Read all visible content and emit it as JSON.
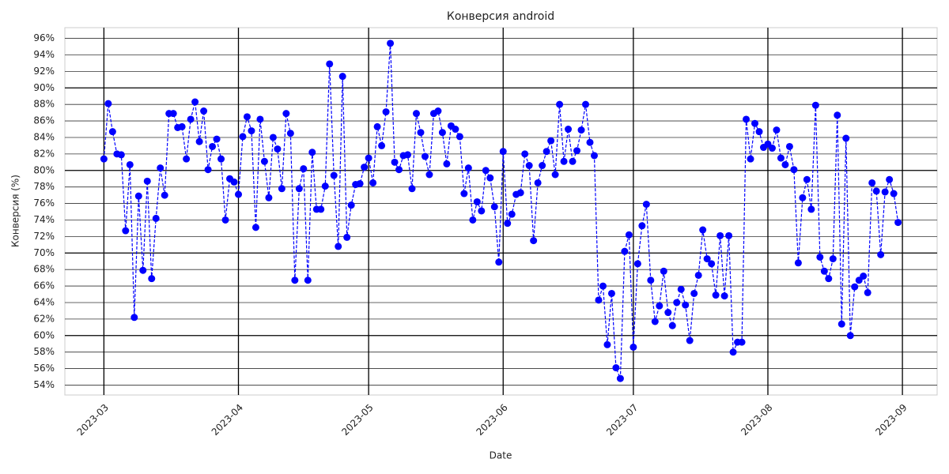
{
  "chart_data": {
    "type": "line",
    "title": "Конверсия android",
    "xlabel": "Date",
    "ylabel": "Конверсия (%)",
    "x": [
      "2023-03-01",
      "2023-03-02",
      "2023-03-03",
      "2023-03-04",
      "2023-03-05",
      "2023-03-06",
      "2023-03-07",
      "2023-03-08",
      "2023-03-09",
      "2023-03-10",
      "2023-03-11",
      "2023-03-12",
      "2023-03-13",
      "2023-03-14",
      "2023-03-15",
      "2023-03-16",
      "2023-03-17",
      "2023-03-18",
      "2023-03-19",
      "2023-03-20",
      "2023-03-21",
      "2023-03-22",
      "2023-03-23",
      "2023-03-24",
      "2023-03-25",
      "2023-03-26",
      "2023-03-27",
      "2023-03-28",
      "2023-03-29",
      "2023-03-30",
      "2023-03-31",
      "2023-04-01",
      "2023-04-02",
      "2023-04-03",
      "2023-04-04",
      "2023-04-05",
      "2023-04-06",
      "2023-04-07",
      "2023-04-08",
      "2023-04-09",
      "2023-04-10",
      "2023-04-11",
      "2023-04-12",
      "2023-04-13",
      "2023-04-14",
      "2023-04-15",
      "2023-04-16",
      "2023-04-17",
      "2023-04-18",
      "2023-04-19",
      "2023-04-20",
      "2023-04-21",
      "2023-04-22",
      "2023-04-23",
      "2023-04-24",
      "2023-04-25",
      "2023-04-26",
      "2023-04-27",
      "2023-04-28",
      "2023-04-29",
      "2023-04-30",
      "2023-05-01",
      "2023-05-02",
      "2023-05-03",
      "2023-05-04",
      "2023-05-05",
      "2023-05-06",
      "2023-05-07",
      "2023-05-08",
      "2023-05-09",
      "2023-05-10",
      "2023-05-11",
      "2023-05-12",
      "2023-05-13",
      "2023-05-14",
      "2023-05-15",
      "2023-05-16",
      "2023-05-17",
      "2023-05-18",
      "2023-05-19",
      "2023-05-20",
      "2023-05-21",
      "2023-05-22",
      "2023-05-23",
      "2023-05-24",
      "2023-05-25",
      "2023-05-26",
      "2023-05-27",
      "2023-05-28",
      "2023-05-29",
      "2023-05-30",
      "2023-05-31",
      "2023-06-01",
      "2023-06-02",
      "2023-06-03",
      "2023-06-04",
      "2023-06-05",
      "2023-06-06",
      "2023-06-07",
      "2023-06-08",
      "2023-06-09",
      "2023-06-10",
      "2023-06-11",
      "2023-06-12",
      "2023-06-13",
      "2023-06-14",
      "2023-06-15",
      "2023-06-16",
      "2023-06-17",
      "2023-06-18",
      "2023-06-19",
      "2023-06-20",
      "2023-06-21",
      "2023-06-22",
      "2023-06-23",
      "2023-06-24",
      "2023-06-25",
      "2023-06-26",
      "2023-06-27",
      "2023-06-28",
      "2023-06-29",
      "2023-06-30",
      "2023-07-01",
      "2023-07-02",
      "2023-07-03",
      "2023-07-04",
      "2023-07-05",
      "2023-07-06",
      "2023-07-07",
      "2023-07-08",
      "2023-07-09",
      "2023-07-10",
      "2023-07-11",
      "2023-07-12",
      "2023-07-13",
      "2023-07-14",
      "2023-07-15",
      "2023-07-16",
      "2023-07-17",
      "2023-07-18",
      "2023-07-19",
      "2023-07-20",
      "2023-07-21",
      "2023-07-22",
      "2023-07-23",
      "2023-07-24",
      "2023-07-25",
      "2023-07-26",
      "2023-07-27",
      "2023-07-28",
      "2023-07-29",
      "2023-07-30",
      "2023-07-31",
      "2023-08-01",
      "2023-08-02",
      "2023-08-03",
      "2023-08-04",
      "2023-08-05",
      "2023-08-06",
      "2023-08-07",
      "2023-08-08",
      "2023-08-09",
      "2023-08-10",
      "2023-08-11",
      "2023-08-12",
      "2023-08-13",
      "2023-08-14",
      "2023-08-15",
      "2023-08-16",
      "2023-08-17",
      "2023-08-18",
      "2023-08-19",
      "2023-08-20",
      "2023-08-21",
      "2023-08-22",
      "2023-08-23",
      "2023-08-24",
      "2023-08-25",
      "2023-08-26",
      "2023-08-27",
      "2023-08-28",
      "2023-08-29",
      "2023-08-30",
      "2023-08-31"
    ],
    "series": [
      {
        "color": "#0000ff",
        "values": [
          81.4,
          88.1,
          84.7,
          82.0,
          81.9,
          72.7,
          80.7,
          62.2,
          76.9,
          67.9,
          78.7,
          66.9,
          74.2,
          80.3,
          77.0,
          86.9,
          86.9,
          85.2,
          85.3,
          81.4,
          86.2,
          88.3,
          83.5,
          87.2,
          80.1,
          82.9,
          83.8,
          81.4,
          74.0,
          79.0,
          78.6,
          77.1,
          84.1,
          86.5,
          84.8,
          73.1,
          86.2,
          81.1,
          76.7,
          84.0,
          82.6,
          77.8,
          86.9,
          84.5,
          66.7,
          77.8,
          80.2,
          66.7,
          82.2,
          75.3,
          75.3,
          78.1,
          92.9,
          79.4,
          70.8,
          91.4,
          71.9,
          75.8,
          78.3,
          78.4,
          80.4,
          81.5,
          78.5,
          85.3,
          83.0,
          87.1,
          95.4,
          81.0,
          80.1,
          81.8,
          81.9,
          77.8,
          86.9,
          84.6,
          81.7,
          79.5,
          86.9,
          87.2,
          84.6,
          80.8,
          85.4,
          85.0,
          84.1,
          77.2,
          80.3,
          74.0,
          76.2,
          75.1,
          80.0,
          79.1,
          75.6,
          68.9,
          82.3,
          73.6,
          74.7,
          77.1,
          77.3,
          82.0,
          80.6,
          71.5,
          78.5,
          80.6,
          82.3,
          83.6,
          79.5,
          88.0,
          81.1,
          85.0,
          81.1,
          82.4,
          84.9,
          88.0,
          83.4,
          81.8,
          64.3,
          66.0,
          58.9,
          65.1,
          56.1,
          54.8,
          70.2,
          72.2,
          58.6,
          68.7,
          73.3,
          75.9,
          66.7,
          61.7,
          63.6,
          67.8,
          62.8,
          61.2,
          64.0,
          65.6,
          63.7,
          59.4,
          65.1,
          67.3,
          72.8,
          69.3,
          68.7,
          64.9,
          72.1,
          64.8,
          72.1,
          58.0,
          59.2,
          59.2,
          86.2,
          81.4,
          85.7,
          84.7,
          82.8,
          83.2,
          82.7,
          84.9,
          81.5,
          80.7,
          82.9,
          80.1,
          68.8,
          76.7,
          78.9,
          75.3,
          87.9,
          69.5,
          67.8,
          66.9,
          69.3,
          86.7,
          61.4,
          83.9,
          60.0,
          65.9,
          66.7,
          67.2,
          65.2,
          78.5,
          77.5,
          69.8,
          77.4,
          78.9,
          77.2,
          73.7
        ]
      }
    ],
    "xlim": [
      "2023-02-20",
      "2023-09-09"
    ],
    "xticks": [
      {
        "value": "2023-03-01",
        "label": "2023-03"
      },
      {
        "value": "2023-04-01",
        "label": "2023-04"
      },
      {
        "value": "2023-05-01",
        "label": "2023-05"
      },
      {
        "value": "2023-06-01",
        "label": "2023-06"
      },
      {
        "value": "2023-07-01",
        "label": "2023-07"
      },
      {
        "value": "2023-08-01",
        "label": "2023-08"
      },
      {
        "value": "2023-09-01",
        "label": "2023-09"
      }
    ],
    "ylim": [
      52.8,
      97.3
    ],
    "yticks": [
      {
        "value": 54,
        "label": "54%"
      },
      {
        "value": 56,
        "label": "56%"
      },
      {
        "value": 58,
        "label": "58%"
      },
      {
        "value": 60,
        "label": "60%"
      },
      {
        "value": 62,
        "label": "62%"
      },
      {
        "value": 64,
        "label": "64%"
      },
      {
        "value": 66,
        "label": "66%"
      },
      {
        "value": 68,
        "label": "68%"
      },
      {
        "value": 70,
        "label": "70%"
      },
      {
        "value": 72,
        "label": "72%"
      },
      {
        "value": 74,
        "label": "74%"
      },
      {
        "value": 76,
        "label": "76%"
      },
      {
        "value": 78,
        "label": "78%"
      },
      {
        "value": 80,
        "label": "80%"
      },
      {
        "value": 82,
        "label": "82%"
      },
      {
        "value": 84,
        "label": "84%"
      },
      {
        "value": 86,
        "label": "86%"
      },
      {
        "value": 88,
        "label": "88%"
      },
      {
        "value": 90,
        "label": "90%"
      },
      {
        "value": 92,
        "label": "92%"
      },
      {
        "value": 94,
        "label": "94%"
      },
      {
        "value": 96,
        "label": "96%"
      }
    ],
    "grid": true
  }
}
